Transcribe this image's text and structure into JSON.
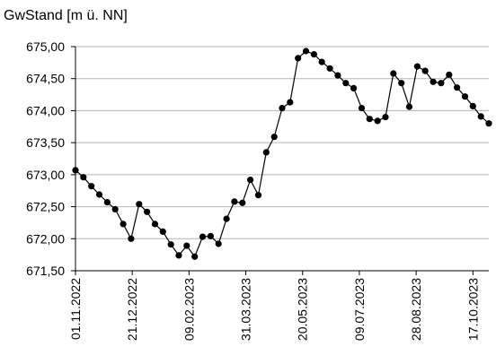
{
  "chart_data": {
    "type": "line",
    "title": "",
    "ylabel": "GwStand [m ü. NN]",
    "xlabel": "",
    "ylim": [
      671.5,
      675.0
    ],
    "yticks": [
      "671,50",
      "672,00",
      "672,50",
      "673,00",
      "673,50",
      "674,00",
      "674,50",
      "675,00"
    ],
    "xticks": [
      "01.11.2022",
      "21.12.2022",
      "09.02.2023",
      "31.03.2023",
      "20.05.2023",
      "09.07.2023",
      "28.08.2023",
      "17.10.2023"
    ],
    "x_range": [
      "01.11.2022",
      "31.10.2023"
    ],
    "grid": "horizontal",
    "line_color": "#000000",
    "grid_color": "#b3b3b3",
    "series": [
      {
        "x": [
          "01.11.2022",
          "08.11.2022",
          "15.11.2022",
          "22.11.2022",
          "29.11.2022",
          "06.12.2022",
          "13.12.2022",
          "20.12.2022",
          "27.12.2022",
          "03.01.2023",
          "10.01.2023",
          "17.01.2023",
          "24.01.2023",
          "31.01.2023",
          "07.02.2023",
          "14.02.2023",
          "21.02.2023",
          "28.02.2023",
          "07.03.2023",
          "14.03.2023",
          "21.03.2023",
          "28.03.2023",
          "04.04.2023",
          "11.04.2023",
          "18.04.2023",
          "25.04.2023",
          "02.05.2023",
          "09.05.2023",
          "16.05.2023",
          "23.05.2023",
          "30.05.2023",
          "06.06.2023",
          "13.06.2023",
          "20.06.2023",
          "27.06.2023",
          "04.07.2023",
          "11.07.2023",
          "18.07.2023",
          "25.07.2023",
          "01.08.2023",
          "08.08.2023",
          "15.08.2023",
          "22.08.2023",
          "29.08.2023",
          "05.09.2023",
          "12.09.2023",
          "19.09.2023",
          "26.09.2023",
          "03.10.2023",
          "10.10.2023",
          "17.10.2023",
          "24.10.2023",
          "31.10.2023"
        ],
        "values": [
          673.07,
          672.96,
          672.82,
          672.69,
          672.57,
          672.46,
          672.23,
          672.0,
          672.54,
          672.42,
          672.23,
          672.11,
          671.91,
          671.74,
          671.89,
          671.72,
          672.03,
          672.04,
          671.92,
          672.31,
          672.58,
          672.56,
          672.92,
          672.68,
          673.35,
          673.59,
          674.04,
          674.13,
          674.82,
          674.93,
          674.88,
          674.76,
          674.66,
          674.55,
          674.43,
          674.35,
          674.04,
          673.87,
          673.84,
          673.9,
          674.58,
          674.43,
          674.06,
          674.69,
          674.62,
          674.45,
          674.43,
          674.56,
          674.36,
          674.22,
          674.07,
          673.91,
          673.8
        ]
      }
    ]
  }
}
